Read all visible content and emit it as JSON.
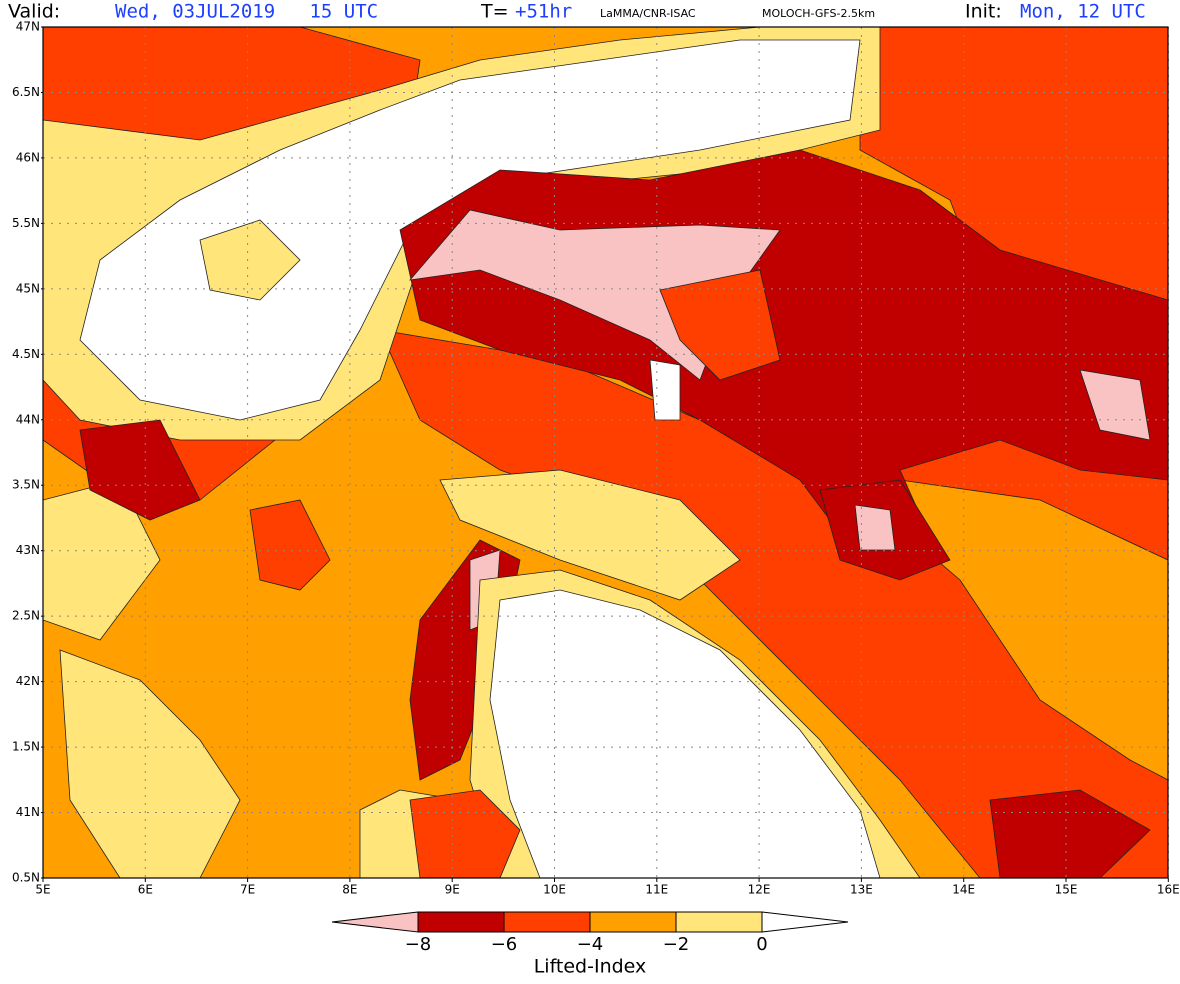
{
  "header": {
    "valid_label": "Valid:",
    "valid_time": "Wed, 03JUL2019   15 UTC",
    "lead_label": "T=",
    "lead_time": "+51hr",
    "institution": "LaMMA/CNR-ISAC",
    "model": "MOLOCH-GFS-2.5km",
    "init_label": "Init:",
    "init_time": "Mon, 12 UTC"
  },
  "map": {
    "lat_labels": [
      "47N",
      "6.5N",
      "46N",
      "5.5N",
      "45N",
      "4.5N",
      "44N",
      "3.5N",
      "43N",
      "2.5N",
      "42N",
      "1.5N",
      "41N",
      "0.5N"
    ],
    "lon_labels": [
      "5E",
      "6E",
      "7E",
      "8E",
      "9E",
      "10E",
      "11E",
      "12E",
      "13E",
      "14E",
      "15E",
      "16E"
    ]
  },
  "colorbar": {
    "title": "Lifted-Index",
    "labels": [
      "−8",
      "−6",
      "−4",
      "−2",
      "0"
    ],
    "colors": [
      "#f9c3c3",
      "#c00000",
      "#ff3f00",
      "#ff9f00",
      "#ffe57a",
      "#ffffff"
    ]
  }
}
